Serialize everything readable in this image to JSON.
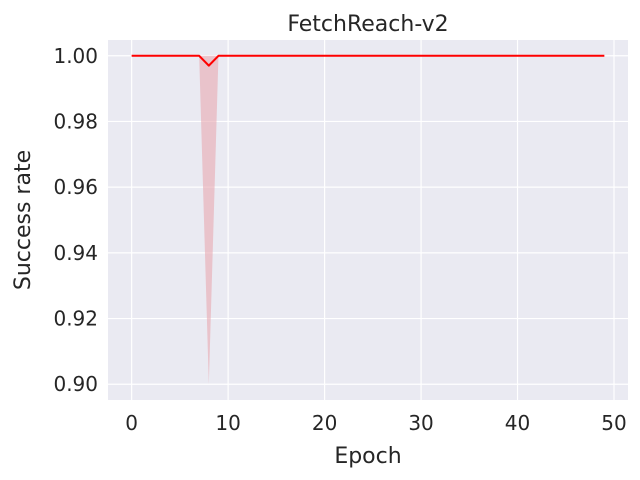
{
  "chart_data": {
    "type": "line",
    "title": "FetchReach-v2",
    "xlabel": "Epoch",
    "ylabel": "Success rate",
    "xlim": [
      -2.45,
      51.45
    ],
    "ylim": [
      0.8952,
      1.0048
    ],
    "xticks": [
      0,
      10,
      20,
      30,
      40,
      50
    ],
    "yticks": [
      0.9,
      0.92,
      0.94,
      0.96,
      0.98,
      1.0
    ],
    "ytick_labels": [
      "0.90",
      "0.92",
      "0.94",
      "0.96",
      "0.98",
      "1.00"
    ],
    "grid": true,
    "legend": "none",
    "series": [
      {
        "color": "#ff0000",
        "band_color": "#e8a8b0",
        "x": [
          0,
          1,
          2,
          3,
          4,
          5,
          6,
          7,
          8,
          9,
          10,
          11,
          12,
          13,
          14,
          15,
          16,
          17,
          18,
          19,
          20,
          21,
          22,
          23,
          24,
          25,
          26,
          27,
          28,
          29,
          30,
          31,
          32,
          33,
          34,
          35,
          36,
          37,
          38,
          39,
          40,
          41,
          42,
          43,
          44,
          45,
          46,
          47,
          48,
          49
        ],
        "y": [
          1,
          1,
          1,
          1,
          1,
          1,
          1,
          1,
          0.997,
          1,
          1,
          1,
          1,
          1,
          1,
          1,
          1,
          1,
          1,
          1,
          1,
          1,
          1,
          1,
          1,
          1,
          1,
          1,
          1,
          1,
          1,
          1,
          1,
          1,
          1,
          1,
          1,
          1,
          1,
          1,
          1,
          1,
          1,
          1,
          1,
          1,
          1,
          1,
          1,
          1
        ],
        "band_lower": [
          1,
          1,
          1,
          1,
          1,
          1,
          1,
          1,
          0.9,
          1,
          1,
          1,
          1,
          1,
          1,
          1,
          1,
          1,
          1,
          1,
          1,
          1,
          1,
          1,
          1,
          1,
          1,
          1,
          1,
          1,
          1,
          1,
          1,
          1,
          1,
          1,
          1,
          1,
          1,
          1,
          1,
          1,
          1,
          1,
          1,
          1,
          1,
          1,
          1,
          1
        ],
        "band_upper": [
          1,
          1,
          1,
          1,
          1,
          1,
          1,
          1,
          1,
          1,
          1,
          1,
          1,
          1,
          1,
          1,
          1,
          1,
          1,
          1,
          1,
          1,
          1,
          1,
          1,
          1,
          1,
          1,
          1,
          1,
          1,
          1,
          1,
          1,
          1,
          1,
          1,
          1,
          1,
          1,
          1,
          1,
          1,
          1,
          1,
          1,
          1,
          1,
          1,
          1
        ]
      }
    ]
  },
  "colors": {
    "plot_background": "#eaeaf2",
    "grid": "#ffffff",
    "text": "#262626"
  }
}
